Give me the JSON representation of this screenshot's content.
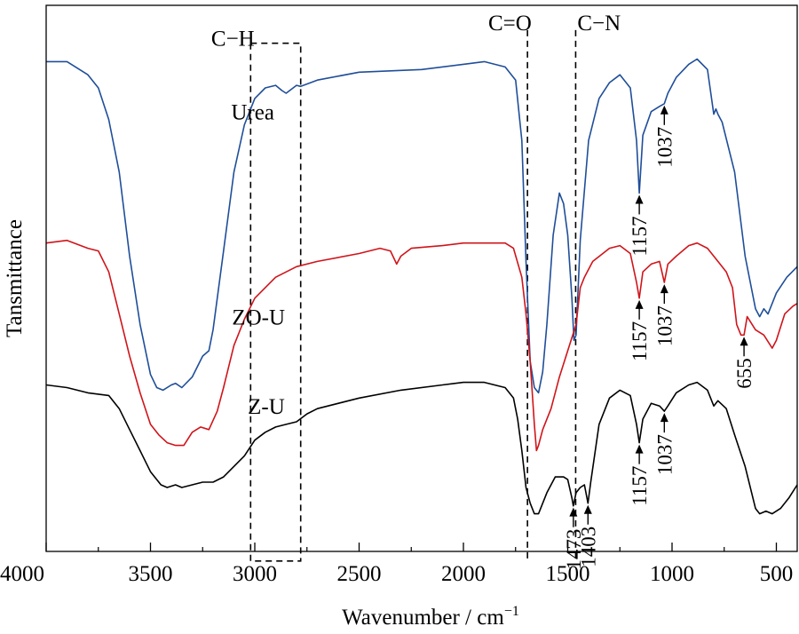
{
  "chart_data": {
    "type": "line",
    "title": "",
    "xlabel": "Wavenumber / cm",
    "xlabel_sup": "−1",
    "ylabel": "Tansmittance",
    "xlim": [
      4000,
      400
    ],
    "x_reversed": true,
    "xticks": [
      4000,
      3500,
      3000,
      2500,
      2000,
      1500,
      1000,
      500
    ],
    "xtick_labels": [
      "4000",
      "3500",
      "3000",
      "2500",
      "2000",
      "1500",
      "1000",
      "500"
    ],
    "y_ticks_shown": false,
    "legend": "none",
    "series": [
      {
        "name": "Urea",
        "color": "#1f4e99",
        "points": [
          [
            4000,
            0.93
          ],
          [
            3900,
            0.93
          ],
          [
            3800,
            0.905
          ],
          [
            3750,
            0.88
          ],
          [
            3700,
            0.82
          ],
          [
            3650,
            0.72
          ],
          [
            3600,
            0.56
          ],
          [
            3550,
            0.43
          ],
          [
            3500,
            0.335
          ],
          [
            3470,
            0.31
          ],
          [
            3440,
            0.305
          ],
          [
            3400,
            0.315
          ],
          [
            3380,
            0.318
          ],
          [
            3350,
            0.31
          ],
          [
            3300,
            0.33
          ],
          [
            3250,
            0.37
          ],
          [
            3220,
            0.38
          ],
          [
            3200,
            0.42
          ],
          [
            3150,
            0.57
          ],
          [
            3100,
            0.72
          ],
          [
            3050,
            0.81
          ],
          [
            3000,
            0.86
          ],
          [
            2950,
            0.88
          ],
          [
            2900,
            0.885
          ],
          [
            2870,
            0.875
          ],
          [
            2850,
            0.87
          ],
          [
            2800,
            0.885
          ],
          [
            2780,
            0.883
          ],
          [
            2700,
            0.895
          ],
          [
            2500,
            0.91
          ],
          [
            2200,
            0.915
          ],
          [
            2000,
            0.925
          ],
          [
            1900,
            0.93
          ],
          [
            1800,
            0.92
          ],
          [
            1750,
            0.895
          ],
          [
            1720,
            0.78
          ],
          [
            1700,
            0.55
          ],
          [
            1680,
            0.36
          ],
          [
            1660,
            0.31
          ],
          [
            1640,
            0.3
          ],
          [
            1620,
            0.34
          ],
          [
            1600,
            0.43
          ],
          [
            1570,
            0.6
          ],
          [
            1540,
            0.68
          ],
          [
            1520,
            0.66
          ],
          [
            1500,
            0.6
          ],
          [
            1480,
            0.48
          ],
          [
            1470,
            0.4
          ],
          [
            1460,
            0.41
          ],
          [
            1440,
            0.59
          ],
          [
            1400,
            0.78
          ],
          [
            1350,
            0.86
          ],
          [
            1300,
            0.89
          ],
          [
            1250,
            0.905
          ],
          [
            1200,
            0.88
          ],
          [
            1170,
            0.78
          ],
          [
            1157,
            0.68
          ],
          [
            1140,
            0.79
          ],
          [
            1100,
            0.835
          ],
          [
            1060,
            0.845
          ],
          [
            1037,
            0.85
          ],
          [
            1020,
            0.87
          ],
          [
            980,
            0.9
          ],
          [
            920,
            0.925
          ],
          [
            880,
            0.935
          ],
          [
            830,
            0.915
          ],
          [
            800,
            0.83
          ],
          [
            790,
            0.84
          ],
          [
            780,
            0.83
          ],
          [
            760,
            0.815
          ],
          [
            700,
            0.72
          ],
          [
            650,
            0.56
          ],
          [
            600,
            0.46
          ],
          [
            580,
            0.445
          ],
          [
            560,
            0.46
          ],
          [
            540,
            0.45
          ],
          [
            500,
            0.49
          ],
          [
            450,
            0.52
          ],
          [
            400,
            0.54
          ]
        ]
      },
      {
        "name": "ZO-U",
        "color": "#d0141a",
        "points": [
          [
            4000,
            0.585
          ],
          [
            3900,
            0.59
          ],
          [
            3800,
            0.575
          ],
          [
            3750,
            0.57
          ],
          [
            3700,
            0.53
          ],
          [
            3650,
            0.45
          ],
          [
            3600,
            0.37
          ],
          [
            3550,
            0.3
          ],
          [
            3500,
            0.24
          ],
          [
            3460,
            0.22
          ],
          [
            3420,
            0.205
          ],
          [
            3380,
            0.2
          ],
          [
            3340,
            0.2
          ],
          [
            3300,
            0.225
          ],
          [
            3260,
            0.235
          ],
          [
            3220,
            0.23
          ],
          [
            3180,
            0.265
          ],
          [
            3150,
            0.31
          ],
          [
            3100,
            0.39
          ],
          [
            3050,
            0.44
          ],
          [
            3000,
            0.48
          ],
          [
            2900,
            0.52
          ],
          [
            2800,
            0.54
          ],
          [
            2700,
            0.55
          ],
          [
            2500,
            0.565
          ],
          [
            2400,
            0.575
          ],
          [
            2350,
            0.57
          ],
          [
            2320,
            0.545
          ],
          [
            2300,
            0.56
          ],
          [
            2250,
            0.575
          ],
          [
            2100,
            0.58
          ],
          [
            2000,
            0.585
          ],
          [
            1900,
            0.585
          ],
          [
            1800,
            0.585
          ],
          [
            1760,
            0.575
          ],
          [
            1720,
            0.52
          ],
          [
            1700,
            0.45
          ],
          [
            1680,
            0.36
          ],
          [
            1660,
            0.24
          ],
          [
            1650,
            0.19
          ],
          [
            1640,
            0.2
          ],
          [
            1620,
            0.23
          ],
          [
            1580,
            0.27
          ],
          [
            1540,
            0.33
          ],
          [
            1500,
            0.38
          ],
          [
            1460,
            0.43
          ],
          [
            1440,
            0.5
          ],
          [
            1420,
            0.52
          ],
          [
            1400,
            0.535
          ],
          [
            1380,
            0.55
          ],
          [
            1300,
            0.575
          ],
          [
            1250,
            0.58
          ],
          [
            1200,
            0.565
          ],
          [
            1170,
            0.51
          ],
          [
            1157,
            0.48
          ],
          [
            1140,
            0.53
          ],
          [
            1100,
            0.545
          ],
          [
            1060,
            0.55
          ],
          [
            1037,
            0.51
          ],
          [
            1020,
            0.545
          ],
          [
            980,
            0.56
          ],
          [
            920,
            0.58
          ],
          [
            880,
            0.585
          ],
          [
            830,
            0.575
          ],
          [
            780,
            0.55
          ],
          [
            740,
            0.53
          ],
          [
            710,
            0.5
          ],
          [
            690,
            0.43
          ],
          [
            670,
            0.41
          ],
          [
            655,
            0.41
          ],
          [
            640,
            0.445
          ],
          [
            600,
            0.42
          ],
          [
            560,
            0.41
          ],
          [
            520,
            0.385
          ],
          [
            500,
            0.4
          ],
          [
            460,
            0.45
          ],
          [
            420,
            0.465
          ],
          [
            400,
            0.47
          ]
        ]
      },
      {
        "name": "Z-U",
        "color": "#000000",
        "points": [
          [
            4000,
            0.315
          ],
          [
            3900,
            0.31
          ],
          [
            3800,
            0.3
          ],
          [
            3700,
            0.295
          ],
          [
            3650,
            0.27
          ],
          [
            3600,
            0.23
          ],
          [
            3550,
            0.19
          ],
          [
            3500,
            0.15
          ],
          [
            3450,
            0.125
          ],
          [
            3420,
            0.12
          ],
          [
            3380,
            0.125
          ],
          [
            3350,
            0.12
          ],
          [
            3300,
            0.125
          ],
          [
            3250,
            0.13
          ],
          [
            3200,
            0.13
          ],
          [
            3150,
            0.14
          ],
          [
            3100,
            0.16
          ],
          [
            3050,
            0.18
          ],
          [
            3000,
            0.21
          ],
          [
            2950,
            0.225
          ],
          [
            2900,
            0.235
          ],
          [
            2850,
            0.24
          ],
          [
            2800,
            0.245
          ],
          [
            2750,
            0.26
          ],
          [
            2700,
            0.27
          ],
          [
            2500,
            0.29
          ],
          [
            2300,
            0.305
          ],
          [
            2100,
            0.315
          ],
          [
            2000,
            0.32
          ],
          [
            1900,
            0.32
          ],
          [
            1800,
            0.31
          ],
          [
            1760,
            0.29
          ],
          [
            1740,
            0.25
          ],
          [
            1720,
            0.19
          ],
          [
            1700,
            0.12
          ],
          [
            1680,
            0.09
          ],
          [
            1660,
            0.07
          ],
          [
            1640,
            0.07
          ],
          [
            1600,
            0.11
          ],
          [
            1560,
            0.14
          ],
          [
            1520,
            0.14
          ],
          [
            1500,
            0.135
          ],
          [
            1480,
            0.1
          ],
          [
            1473,
            0.085
          ],
          [
            1460,
            0.11
          ],
          [
            1440,
            0.12
          ],
          [
            1420,
            0.125
          ],
          [
            1403,
            0.09
          ],
          [
            1390,
            0.13
          ],
          [
            1350,
            0.24
          ],
          [
            1300,
            0.29
          ],
          [
            1250,
            0.305
          ],
          [
            1200,
            0.295
          ],
          [
            1170,
            0.24
          ],
          [
            1157,
            0.205
          ],
          [
            1140,
            0.25
          ],
          [
            1100,
            0.28
          ],
          [
            1060,
            0.275
          ],
          [
            1037,
            0.265
          ],
          [
            1020,
            0.275
          ],
          [
            980,
            0.3
          ],
          [
            920,
            0.315
          ],
          [
            880,
            0.32
          ],
          [
            830,
            0.305
          ],
          [
            800,
            0.275
          ],
          [
            780,
            0.285
          ],
          [
            740,
            0.27
          ],
          [
            700,
            0.22
          ],
          [
            650,
            0.16
          ],
          [
            600,
            0.08
          ],
          [
            580,
            0.07
          ],
          [
            550,
            0.075
          ],
          [
            520,
            0.07
          ],
          [
            480,
            0.08
          ],
          [
            440,
            0.1
          ],
          [
            400,
            0.125
          ]
        ]
      }
    ],
    "curve_labels": [
      {
        "text": "Urea",
        "x": 3010,
        "y": 0.82
      },
      {
        "text": "ZO-U",
        "x": 2982,
        "y": 0.43
      },
      {
        "text": "Z-U",
        "x": 2945,
        "y": 0.26
      }
    ],
    "group_labels": [
      {
        "text": "C−H",
        "x": 3105,
        "y": 0.96
      },
      {
        "text": "C=O",
        "x": 1777,
        "y": 0.99
      },
      {
        "text": "C−N",
        "x": 1350,
        "y": 0.99
      }
    ],
    "dashed_box": {
      "x_from": 3020,
      "x_to": 2780,
      "y_from": -0.02,
      "y_to": 0.965
    },
    "dashed_lines": [
      {
        "x": 1693,
        "y_from": -0.02,
        "y_to": 0.99
      },
      {
        "x": 1462,
        "y_from": -0.02,
        "y_to": 0.99
      }
    ],
    "peak_markers": [
      {
        "series": "Urea",
        "label": "1157",
        "x": 1157
      },
      {
        "series": "Urea",
        "label": "1037",
        "x": 1037
      },
      {
        "series": "ZO-U",
        "label": "1157",
        "x": 1157
      },
      {
        "series": "ZO-U",
        "label": "1037",
        "x": 1037
      },
      {
        "series": "ZO-U",
        "label": "655",
        "x": 655
      },
      {
        "series": "Z-U",
        "label": "1473",
        "x": 1473
      },
      {
        "series": "Z-U",
        "label": "1403",
        "x": 1403
      },
      {
        "series": "Z-U",
        "label": "1157",
        "x": 1157
      },
      {
        "series": "Z-U",
        "label": "1037",
        "x": 1037
      }
    ]
  }
}
